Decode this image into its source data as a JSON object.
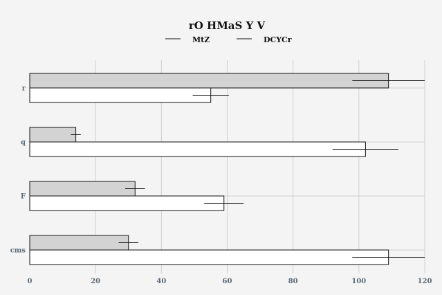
{
  "chart_data": {
    "type": "bar",
    "orientation": "horizontal",
    "title": "rO HMaS Y V",
    "xlabel": "",
    "ylabel": "",
    "categories": [
      "r",
      "q",
      "F",
      "cms"
    ],
    "xlim": [
      0,
      120
    ],
    "xticks": [
      0,
      20,
      40,
      60,
      80,
      100,
      120
    ],
    "grid": true,
    "legend_position": "top-center",
    "series": [
      {
        "name": "MtZ",
        "color": "#d3d3d3",
        "values": [
          109,
          14,
          32,
          30
        ],
        "errors": [
          11,
          1.5,
          3,
          3
        ]
      },
      {
        "name": "DCYCr",
        "color": "#ffffff",
        "values": [
          55,
          102,
          59,
          109
        ],
        "errors": [
          5.5,
          10,
          6,
          11
        ]
      }
    ]
  }
}
